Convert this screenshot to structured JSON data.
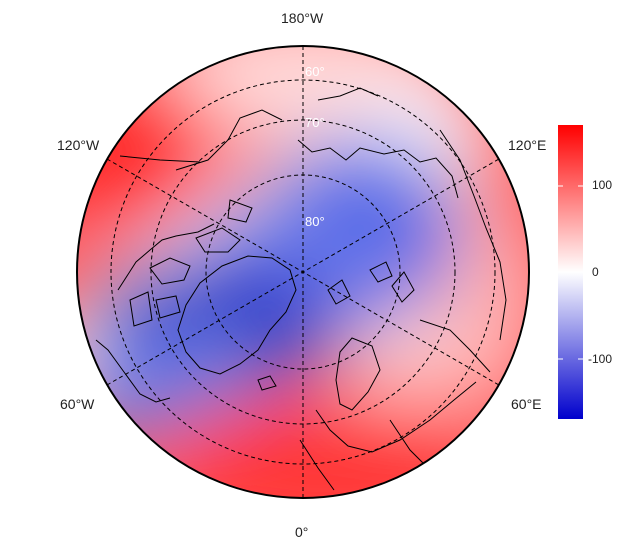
{
  "map": {
    "projection": "north-polar-stereographic",
    "longitude_labels": {
      "top": "180°W",
      "upper_left": "120°W",
      "upper_right": "120°E",
      "lower_left": "60°W",
      "lower_right": "60°E",
      "bottom": "0°"
    },
    "latitude_labels": [
      "60°",
      "70°",
      "80°"
    ]
  },
  "colorbar": {
    "ticks": [
      "100",
      "0",
      "-100"
    ],
    "range": [
      -170,
      170
    ],
    "colors": {
      "low": "#0000cc",
      "mid": "#ffffff",
      "high": "#ff0000"
    }
  }
}
